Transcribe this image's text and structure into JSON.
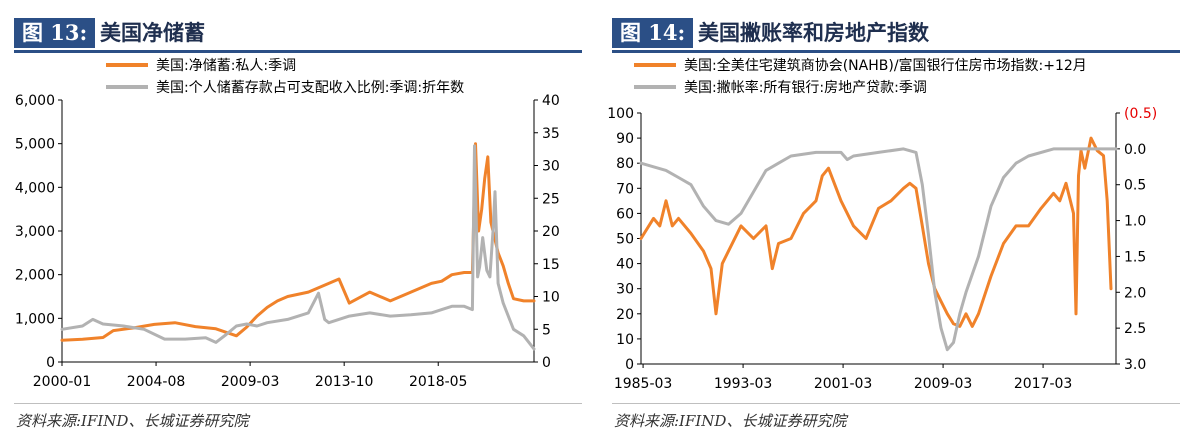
{
  "figures": [
    {
      "tag": "图 13:",
      "title": "美国净储蓄",
      "source": "资料来源:IFIND、长城证券研究院"
    },
    {
      "tag": "图 14:",
      "title": "美国撇账率和房地产指数",
      "source": "资料来源:IFIND、长城证券研究院"
    }
  ],
  "chart_data": [
    {
      "type": "line",
      "title": "",
      "x_tick_labels": [
        "2000-01",
        "2004-08",
        "2009-03",
        "2013-10",
        "2018-05"
      ],
      "x_range": [
        2000.0,
        2023.0
      ],
      "y_left": {
        "range": [
          0,
          6000
        ],
        "ticks": [
          "0",
          "1,000",
          "2,000",
          "3,000",
          "4,000",
          "5,000",
          "6,000"
        ]
      },
      "y_right": {
        "range": [
          0,
          40
        ],
        "ticks": [
          "0",
          "5",
          "10",
          "15",
          "20",
          "25",
          "30",
          "35",
          "40"
        ]
      },
      "legend_position": "top",
      "colors": {
        "orange": "#f0822a",
        "gray": "#b2b2b2"
      },
      "series": [
        {
          "name": "美国:净储蓄:私人:季调",
          "axis": "left",
          "color": "#f0822a",
          "x": [
            2000.0,
            2001.0,
            2002.0,
            2002.5,
            2003.5,
            2004.5,
            2005.5,
            2006.5,
            2007.5,
            2008.5,
            2009.0,
            2009.5,
            2010.0,
            2010.5,
            2011.0,
            2012.0,
            2013.0,
            2013.5,
            2014.0,
            2015.0,
            2016.0,
            2016.5,
            2017.0,
            2018.0,
            2018.5,
            2019.0,
            2019.6,
            2020.0,
            2020.15,
            2020.3,
            2020.45,
            2020.6,
            2020.75,
            2020.9,
            2021.0,
            2021.25,
            2021.5,
            2021.75,
            2022.0,
            2022.5,
            2023.0
          ],
          "y": [
            500,
            520,
            560,
            720,
            780,
            860,
            900,
            810,
            760,
            600,
            800,
            1050,
            1250,
            1400,
            1500,
            1600,
            1800,
            1900,
            1350,
            1600,
            1400,
            1500,
            1600,
            1800,
            1850,
            2000,
            2050,
            2050,
            5000,
            3000,
            3500,
            4200,
            4700,
            3200,
            3000,
            2500,
            2200,
            1800,
            1450,
            1400,
            1400
          ]
        },
        {
          "name": "美国:个人储蓄存款占可支配收入比例:季调:折年数",
          "axis": "right",
          "color": "#b2b2b2",
          "x": [
            2000.0,
            2001.0,
            2001.5,
            2002.0,
            2003.0,
            2004.0,
            2005.0,
            2006.0,
            2007.0,
            2007.5,
            2008.0,
            2008.5,
            2009.0,
            2009.5,
            2010.0,
            2011.0,
            2012.0,
            2012.5,
            2012.8,
            2013.0,
            2014.0,
            2015.0,
            2016.0,
            2017.0,
            2018.0,
            2018.5,
            2019.0,
            2019.6,
            2020.0,
            2020.1,
            2020.25,
            2020.35,
            2020.5,
            2020.7,
            2020.85,
            2021.0,
            2021.1,
            2021.25,
            2021.5,
            2022.0,
            2022.5,
            2023.0
          ],
          "y": [
            5.0,
            5.5,
            6.5,
            5.8,
            5.5,
            5.0,
            3.5,
            3.5,
            3.7,
            3.0,
            4.2,
            5.5,
            5.8,
            5.5,
            6.0,
            6.5,
            7.5,
            10.5,
            6.5,
            6.0,
            7.0,
            7.5,
            7.0,
            7.2,
            7.5,
            8.0,
            8.5,
            8.5,
            8.0,
            33.0,
            13.0,
            14.5,
            19.0,
            14.0,
            13.0,
            20.0,
            26.0,
            12.0,
            9.0,
            5.0,
            4.0,
            2.0
          ]
        }
      ]
    },
    {
      "type": "line",
      "title": "",
      "x_tick_labels": [
        "1985-03",
        "1993-03",
        "2001-03",
        "2009-03",
        "2017-03"
      ],
      "x_range": [
        1985.0,
        2023.0
      ],
      "y_left": {
        "range": [
          0,
          100
        ],
        "ticks": [
          "0",
          "10",
          "20",
          "30",
          "40",
          "50",
          "60",
          "70",
          "80",
          "90",
          "100"
        ]
      },
      "y_right": {
        "range": [
          3.0,
          -0.5
        ],
        "inverted": true,
        "ticks": [
          "(0.5)",
          "0.0",
          "0.5",
          "1.0",
          "1.5",
          "2.0",
          "2.5",
          "3.0"
        ]
      },
      "legend_position": "top",
      "colors": {
        "orange": "#f0822a",
        "gray": "#b2b2b2",
        "negative_tick": "#e60000"
      },
      "series": [
        {
          "name": "美国:全美住宅建筑商协会(NAHB)/富国银行住房市场指数:+12月",
          "axis": "left",
          "color": "#f0822a",
          "x": [
            1985.0,
            1986.0,
            1986.5,
            1987.0,
            1987.5,
            1988.0,
            1989.0,
            1990.0,
            1990.6,
            1991.0,
            1991.5,
            1992.0,
            1993.0,
            1994.0,
            1995.0,
            1995.5,
            1996.0,
            1997.0,
            1998.0,
            1999.0,
            1999.5,
            2000.0,
            2001.0,
            2002.0,
            2003.0,
            2004.0,
            2005.0,
            2006.0,
            2006.5,
            2007.0,
            2007.5,
            2008.0,
            2008.5,
            2009.0,
            2009.5,
            2010.0,
            2010.5,
            2011.0,
            2011.5,
            2012.0,
            2013.0,
            2014.0,
            2015.0,
            2016.0,
            2017.0,
            2018.0,
            2018.5,
            2019.0,
            2019.6,
            2019.8,
            2020.0,
            2020.2,
            2020.5,
            2021.0,
            2021.5,
            2022.0,
            2022.3,
            2022.6
          ],
          "y": [
            50,
            58,
            55,
            65,
            55,
            58,
            52,
            45,
            38,
            20,
            40,
            45,
            55,
            50,
            55,
            38,
            48,
            50,
            60,
            65,
            75,
            78,
            65,
            55,
            50,
            62,
            65,
            70,
            72,
            70,
            55,
            40,
            30,
            25,
            20,
            16,
            15,
            20,
            15,
            20,
            35,
            48,
            55,
            55,
            62,
            68,
            65,
            72,
            60,
            20,
            75,
            85,
            78,
            90,
            85,
            83,
            65,
            30
          ]
        },
        {
          "name": "美国:撇帐率:所有银行:房地产贷款:季调",
          "axis": "right",
          "color": "#b2b2b2",
          "x": [
            1985.0,
            1986.0,
            1987.0,
            1988.0,
            1989.0,
            1990.0,
            1991.0,
            1992.0,
            1993.0,
            1994.0,
            1995.0,
            1996.0,
            1997.0,
            1999.0,
            2001.0,
            2001.5,
            2002.0,
            2004.0,
            2006.0,
            2007.0,
            2007.5,
            2008.0,
            2008.5,
            2009.0,
            2009.5,
            2010.0,
            2010.5,
            2011.0,
            2012.0,
            2013.0,
            2014.0,
            2015.0,
            2016.0,
            2018.0,
            2020.0,
            2021.0,
            2022.0,
            2023.0
          ],
          "y": [
            0.2,
            0.25,
            0.3,
            0.4,
            0.5,
            0.8,
            1.0,
            1.05,
            0.9,
            0.6,
            0.3,
            0.2,
            0.1,
            0.05,
            0.05,
            0.15,
            0.1,
            0.05,
            0.0,
            0.05,
            0.5,
            1.2,
            2.0,
            2.5,
            2.8,
            2.7,
            2.3,
            2.0,
            1.5,
            0.8,
            0.4,
            0.2,
            0.1,
            0.0,
            0.0,
            0.0,
            0.0,
            0.0
          ]
        }
      ]
    }
  ]
}
